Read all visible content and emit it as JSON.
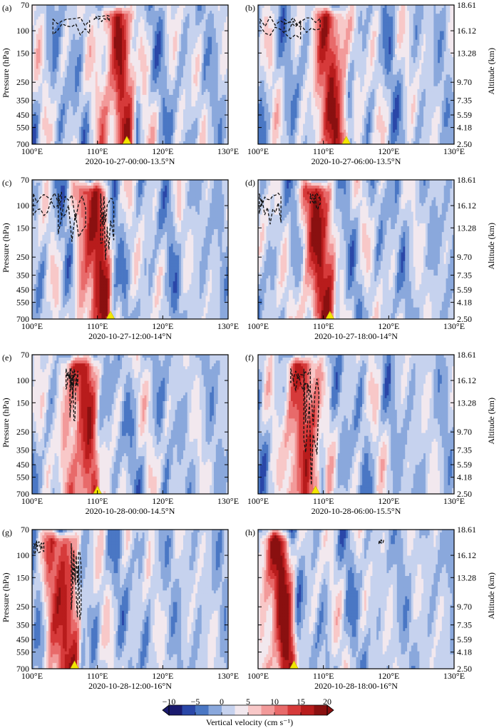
{
  "chart_data": {
    "type": "heatmap",
    "x_ticks": [
      "100°E",
      "110°E",
      "120°E",
      "130°E"
    ],
    "x_range": [
      100,
      130
    ],
    "y_ticks_pressure": [
      "70",
      "100",
      "150",
      "250",
      "350",
      "450",
      "550",
      "700"
    ],
    "y_ticks_altitude": [
      "18.61",
      "16.12",
      "13.28",
      "9.70",
      "7.35",
      "5.59",
      "4.18",
      "2.50"
    ],
    "y_label_left": "Pressure (hPa)",
    "y_label_right": "Altitude (km)",
    "colorbar": {
      "label": "Vertical velocity (cm s⁻¹)",
      "range": [
        -10,
        20
      ],
      "tick_values": [
        -10,
        -5,
        0,
        5,
        10,
        15,
        20
      ],
      "tick_labels": [
        "−10",
        "−5",
        "0",
        "5",
        "10",
        "15",
        "20"
      ],
      "colors": [
        "#1a1a6e",
        "#2a47a8",
        "#4a77c4",
        "#8aa8dc",
        "#c6d2ee",
        "#f2e8ee",
        "#f8c8c8",
        "#f29a9a",
        "#e86a6a",
        "#d63a3a",
        "#b81c1c",
        "#8a1010"
      ]
    },
    "panels": [
      {
        "label": "(a)",
        "caption": "2020-10-27-00:00-13.5°N",
        "center_lon": 114.5,
        "marker_lon": 114.5,
        "contours": [
          [
            103.2,
            108.8,
            0.22
          ],
          [
            109.5,
            111.8,
            0.12
          ]
        ]
      },
      {
        "label": "(b)",
        "caption": "2020-10-27-06:00-13.5°N",
        "center_lon": 112.5,
        "marker_lon": 113.5,
        "contours": [
          [
            100.3,
            106.5,
            0.26
          ],
          [
            104.0,
            109.5,
            0.2
          ]
        ]
      },
      {
        "label": "(c)",
        "caption": "2020-10-27-12:00-14°N",
        "center_lon": 110.8,
        "marker_lon": 112.0,
        "contours": [
          [
            100.2,
            104.5,
            0.28
          ],
          [
            104.0,
            108.2,
            0.5
          ],
          [
            110.5,
            112.5,
            0.62
          ]
        ]
      },
      {
        "label": "(d)",
        "caption": "2020-10-27-18:00-14°N",
        "center_lon": 110.5,
        "marker_lon": 111.0,
        "contours": [
          [
            100.2,
            103.5,
            0.32
          ],
          [
            108.0,
            109.5,
            0.22
          ]
        ]
      },
      {
        "label": "(e)",
        "caption": "2020-10-28-00:00-14.5°N",
        "center_lon": 108.8,
        "marker_lon": 110.0,
        "contours": [
          [
            105.2,
            106.5,
            0.25
          ],
          [
            105.8,
            107.0,
            0.48
          ]
        ]
      },
      {
        "label": "(f)",
        "caption": "2020-10-28-06:00-15.5°N",
        "center_lon": 108.2,
        "marker_lon": 108.8,
        "contours": [
          [
            105.0,
            108.0,
            0.3
          ],
          [
            107.0,
            109.3,
            0.95
          ]
        ]
      },
      {
        "label": "(g)",
        "caption": "2020-10-28-12:00-16°N",
        "center_lon": 106.0,
        "marker_lon": 106.5,
        "contours": [
          [
            100.3,
            101.8,
            0.18
          ],
          [
            106.0,
            107.5,
            0.72
          ]
        ]
      },
      {
        "label": "(h)",
        "caption": "2020-10-28-18:00-16°N",
        "center_lon": 104.5,
        "marker_lon": 105.5,
        "contours": [
          [
            118.5,
            119.2,
            0.1
          ]
        ]
      }
    ]
  }
}
